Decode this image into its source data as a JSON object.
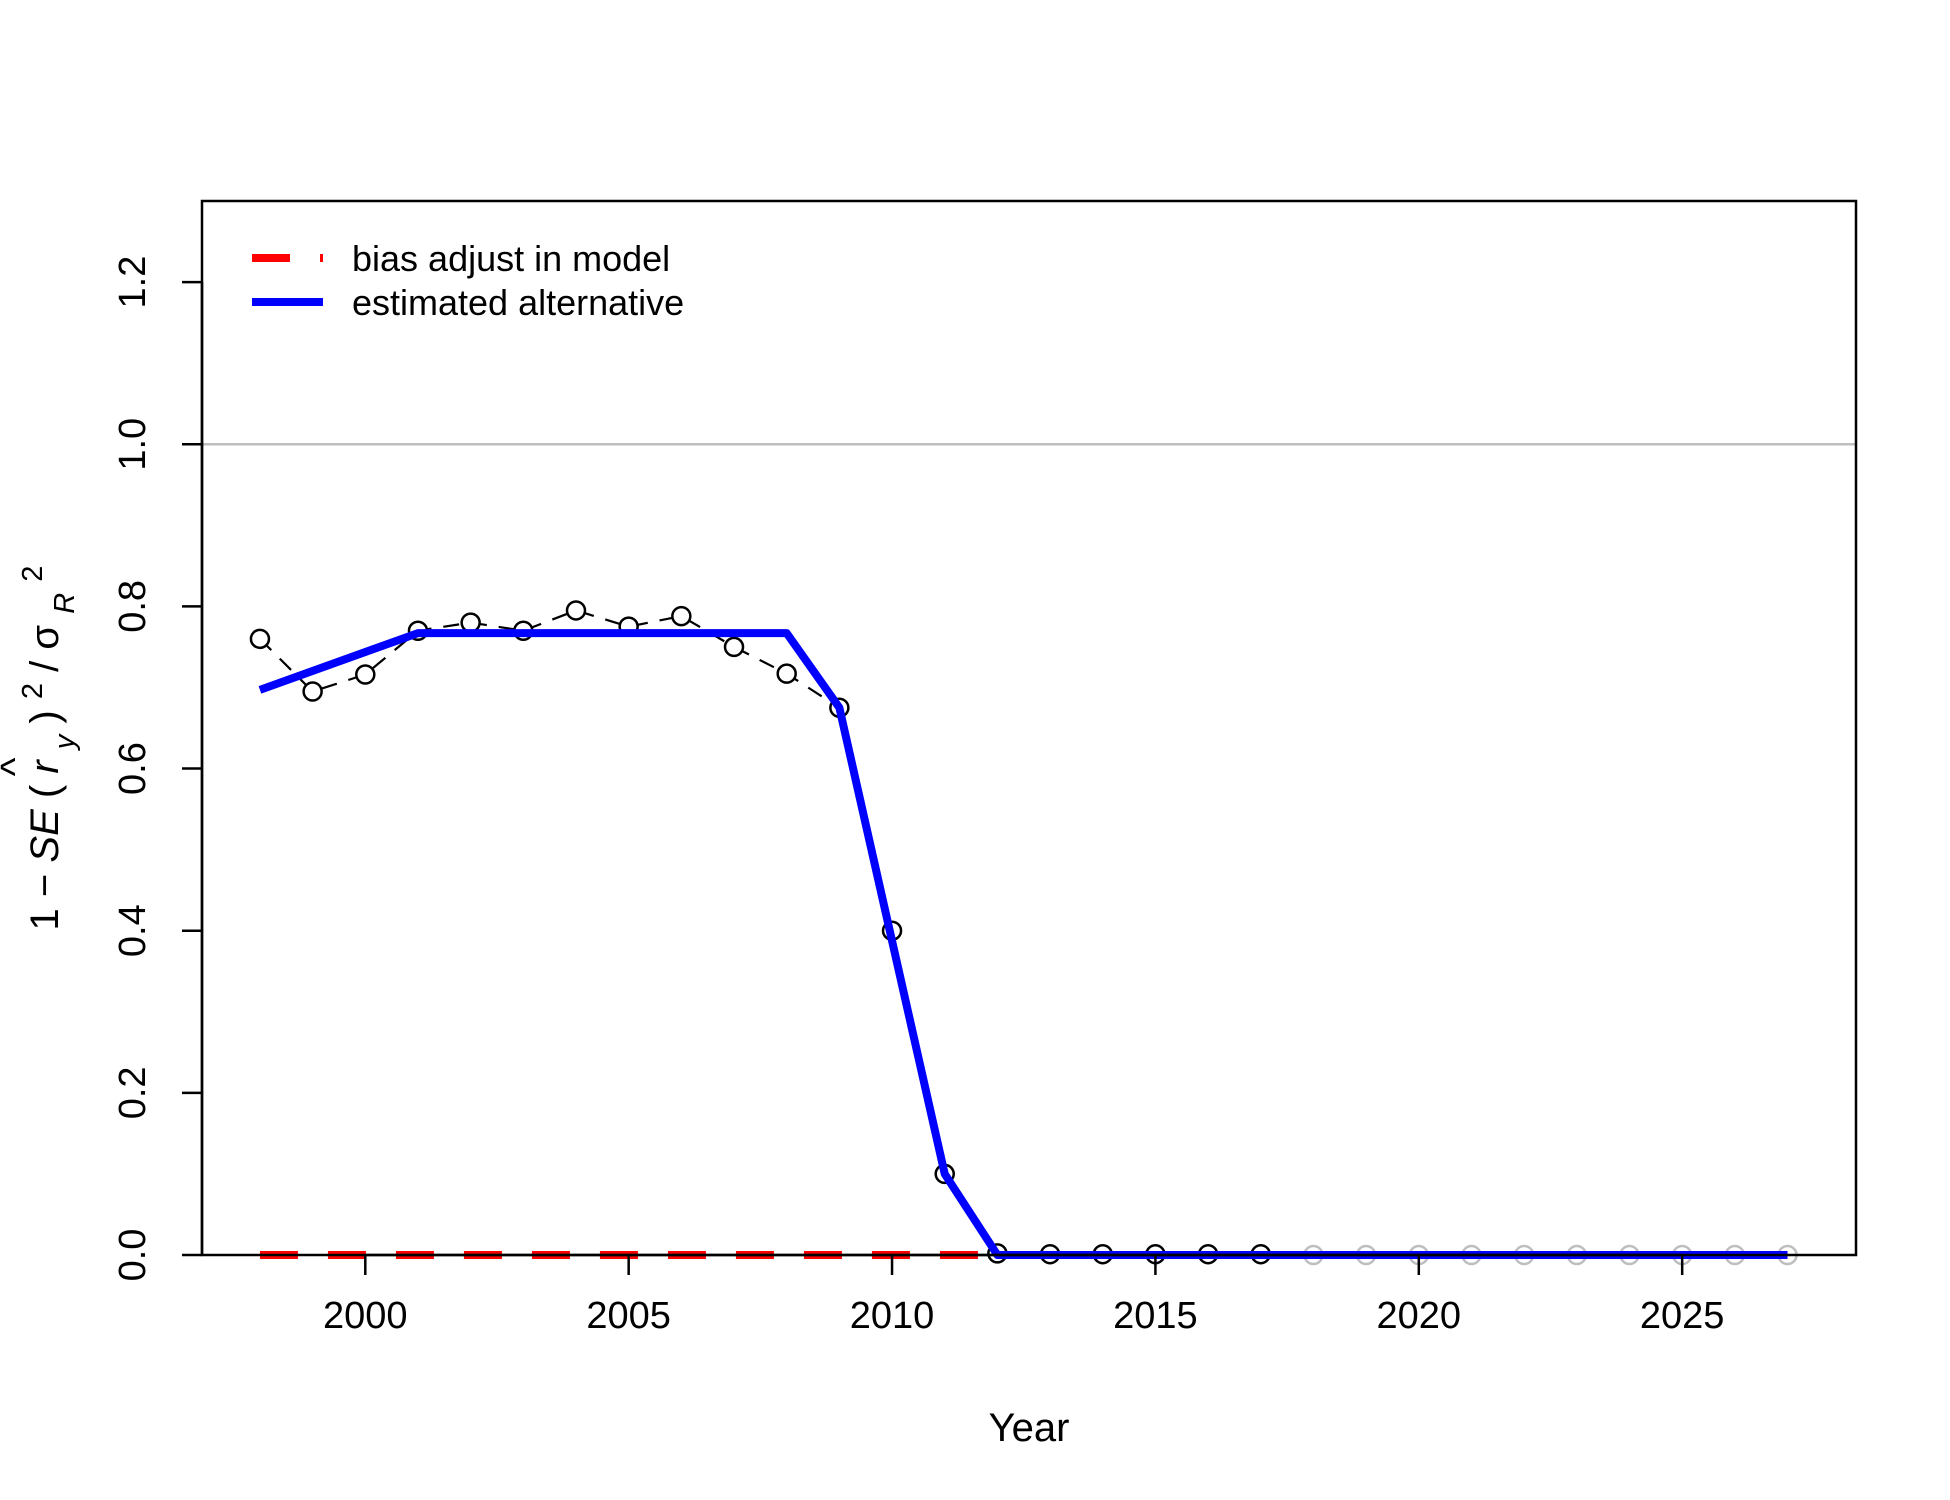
{
  "chart_data": {
    "type": "line",
    "xlabel": "Year",
    "ylabel_parts": {
      "one": "1",
      "minus": "−",
      "se": "SE",
      "open": "(",
      "hat": "^",
      "r": "r",
      "r_sub": "y",
      "close": ")",
      "exp1": "2",
      "slash": "/",
      "sigma": "σ",
      "sigma_sub": "R",
      "exp2": "2"
    },
    "xlim": [
      1996.9,
      2028.3
    ],
    "ylim": [
      0,
      1.3
    ],
    "xticks": [
      2000,
      2005,
      2010,
      2015,
      2020,
      2025
    ],
    "yticks": [
      0.0,
      0.2,
      0.4,
      0.6,
      0.8,
      1.0,
      1.2
    ],
    "ytick_labels": [
      "0.0",
      "0.2",
      "0.4",
      "0.6",
      "0.8",
      "1.0",
      "1.2"
    ],
    "reference_line": {
      "y": 1.0,
      "color": "#bebebe"
    },
    "points": {
      "x": [
        1998,
        1999,
        2000,
        2001,
        2002,
        2003,
        2004,
        2005,
        2006,
        2007,
        2008,
        2009,
        2010,
        2011,
        2012,
        2013,
        2014,
        2015,
        2016,
        2017,
        2018,
        2019,
        2020,
        2021,
        2022,
        2023,
        2024,
        2025,
        2026,
        2027
      ],
      "y": [
        0.76,
        0.695,
        0.716,
        0.77,
        0.78,
        0.77,
        0.795,
        0.775,
        0.788,
        0.75,
        0.717,
        0.675,
        0.4,
        0.1,
        0.002,
        0.001,
        0.001,
        0.001,
        0.001,
        0.001,
        0,
        0,
        0,
        0,
        0,
        0,
        0,
        0,
        0,
        0
      ],
      "n_black": 20,
      "black_color": "#000000",
      "grey_color": "#bebebe"
    },
    "series": [
      {
        "name": "bias adjust in model",
        "color": "#ff0000",
        "style": "dashed",
        "x": [
          1998,
          2027
        ],
        "y": [
          0,
          0
        ]
      },
      {
        "name": "estimated alternative",
        "color": "#0000ff",
        "style": "solid",
        "x": [
          1998,
          2001,
          2008,
          2009,
          2011,
          2012,
          2027
        ],
        "y": [
          0.697,
          0.767,
          0.767,
          0.675,
          0.1,
          0,
          0
        ]
      }
    ],
    "legend": {
      "position": "top-left",
      "entries": [
        "bias adjust in model",
        "estimated alternative"
      ]
    }
  }
}
